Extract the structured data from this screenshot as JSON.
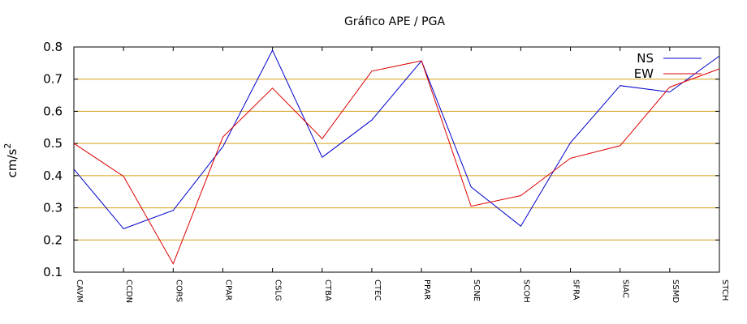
{
  "chart_data": {
    "type": "line",
    "title": "Gráfico  APE / PGA",
    "xlabel": "",
    "ylabel": "cm/s",
    "ylabel_sup": "2",
    "ylim": [
      0.1,
      0.8
    ],
    "yticks": [
      "0.1",
      "0.2",
      "0.3",
      "0.4",
      "0.5",
      "0.6",
      "0.7",
      "0.8"
    ],
    "grid": "horizontal",
    "grid_color": "#d4a017",
    "legend_position": "top-right",
    "categories": [
      "CAVM",
      "CCDN",
      "CORS",
      "CPAR",
      "CSLG",
      "CTBA",
      "CTEC",
      "PPAR",
      "SCNE",
      "SCOH",
      "SFRA",
      "SIAC",
      "SSMD",
      "STCH"
    ],
    "series": [
      {
        "name": "NS",
        "color": "#0000cc",
        "values": [
          0.42,
          0.235,
          0.292,
          0.49,
          0.79,
          0.457,
          0.573,
          0.757,
          0.365,
          0.243,
          0.502,
          0.68,
          0.66,
          0.772
        ]
      },
      {
        "name": "EW",
        "color": "#dd0000",
        "values": [
          0.5,
          0.398,
          0.126,
          0.52,
          0.672,
          0.515,
          0.725,
          0.757,
          0.305,
          0.338,
          0.454,
          0.493,
          0.675,
          0.732
        ]
      }
    ]
  }
}
